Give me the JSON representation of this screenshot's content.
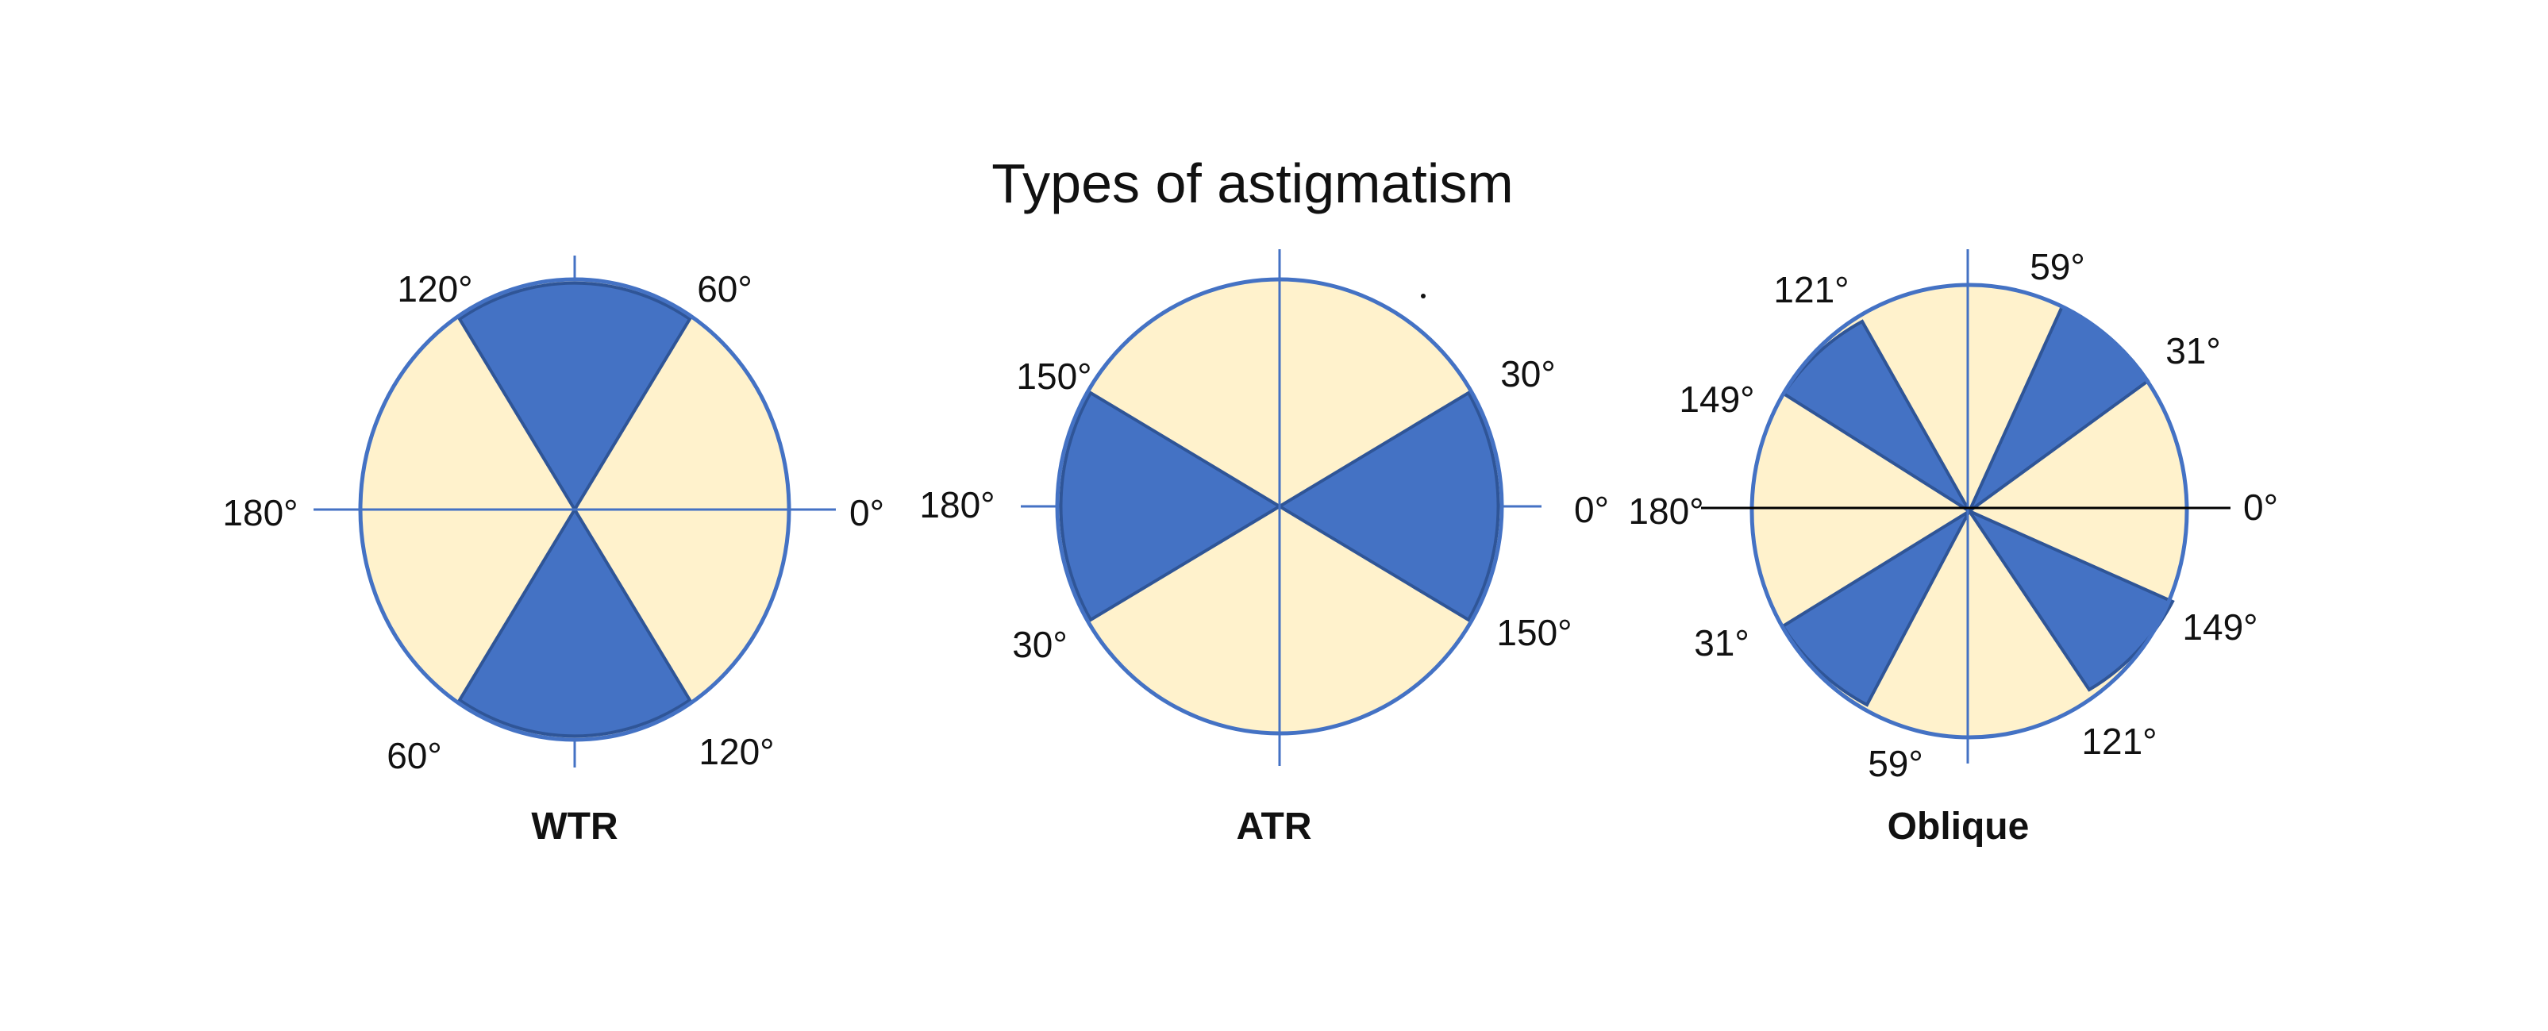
{
  "title": "Types of astigmatism",
  "colors": {
    "light_sector": "#FFF2CC",
    "dark_sector": "#4472C4",
    "outline": "#4472C4",
    "axis_line": "#4472C4",
    "axis_line_dark": "#000000"
  },
  "diagrams": [
    {
      "caption": "WTR",
      "labels": [
        "120°",
        "60°",
        "180°",
        "0°",
        "60°",
        "120°"
      ]
    },
    {
      "caption": "ATR",
      "labels": [
        "150°",
        "30°",
        "180°",
        "0°",
        "30°",
        "150°"
      ]
    },
    {
      "caption": "Oblique",
      "labels": [
        "121°",
        "59°",
        "31°",
        "149°",
        "180°",
        "0°",
        "31°",
        "149°",
        "59°",
        "121°"
      ]
    }
  ]
}
